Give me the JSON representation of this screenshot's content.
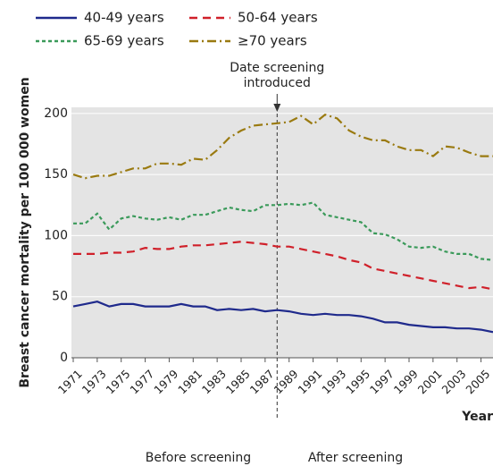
{
  "chart_data": {
    "type": "line",
    "x": [
      1971,
      1972,
      1973,
      1974,
      1975,
      1976,
      1977,
      1978,
      1979,
      1980,
      1981,
      1982,
      1983,
      1984,
      1985,
      1986,
      1987,
      1988,
      1989,
      1990,
      1991,
      1992,
      1993,
      1994,
      1995,
      1996,
      1997,
      1998,
      1999,
      2000,
      2001,
      2002,
      2003,
      2004,
      2005,
      2006
    ],
    "series": [
      {
        "name": "40-49 years",
        "color": "#1f2a8c",
        "dash": "",
        "values": [
          42,
          44,
          46,
          42,
          44,
          44,
          42,
          42,
          42,
          44,
          42,
          42,
          39,
          40,
          39,
          40,
          38,
          39,
          38,
          36,
          35,
          36,
          35,
          35,
          34,
          32,
          29,
          29,
          27,
          26,
          25,
          25,
          24,
          24,
          23,
          21
        ]
      },
      {
        "name": "50-64 years",
        "color": "#d0202a",
        "dash": "9 6",
        "values": [
          85,
          85,
          85,
          86,
          86,
          87,
          90,
          89,
          89,
          91,
          92,
          92,
          93,
          94,
          95,
          94,
          93,
          91,
          91,
          89,
          87,
          85,
          83,
          80,
          78,
          73,
          71,
          69,
          67,
          65,
          63,
          61,
          59,
          57,
          58,
          56
        ]
      },
      {
        "name": "65-69 years",
        "color": "#3a9a5a",
        "dash": "4 3",
        "values": [
          110,
          110,
          118,
          105,
          114,
          116,
          114,
          113,
          115,
          113,
          117,
          117,
          120,
          123,
          121,
          120,
          125,
          125,
          126,
          125,
          127,
          117,
          115,
          113,
          111,
          102,
          101,
          97,
          91,
          90,
          91,
          87,
          85,
          85,
          81,
          80
        ]
      },
      {
        "name": "≥70 years",
        "color": "#9a7a10",
        "dash": "10 4 2 4",
        "values": [
          150,
          147,
          149,
          149,
          152,
          155,
          155,
          159,
          159,
          158,
          163,
          162,
          170,
          180,
          186,
          190,
          191,
          192,
          193,
          198,
          191,
          199,
          196,
          186,
          181,
          178,
          178,
          173,
          170,
          170,
          165,
          173,
          172,
          168,
          165,
          165
        ]
      }
    ],
    "xlim": [
      1971,
      2006
    ],
    "xticks": [
      1971,
      1973,
      1975,
      1977,
      1979,
      1981,
      1983,
      1985,
      1987,
      1989,
      1991,
      1993,
      1995,
      1997,
      1999,
      2001,
      2003,
      2005
    ],
    "ylim": [
      0,
      205
    ],
    "yticks": [
      0,
      50,
      100,
      150,
      200
    ],
    "grid": true,
    "y_label": "Breast cancer mortality per 100 000 women",
    "x_label": "Year",
    "annotation": [
      "Date screening",
      "introduced"
    ],
    "annotation_x": 1988,
    "regions": [
      "Before screening",
      "After screening"
    ]
  }
}
